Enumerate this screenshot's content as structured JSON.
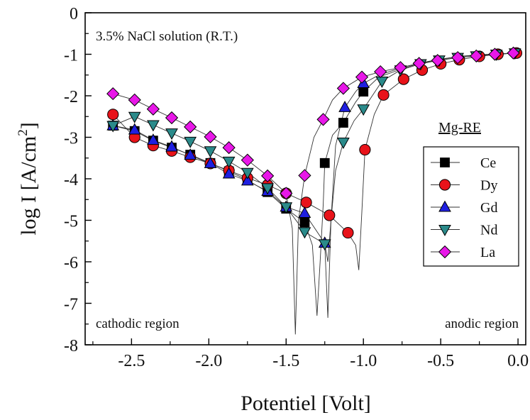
{
  "chart_data": {
    "type": "scatter",
    "xlabel": "Potentiel [Volt]",
    "ylabel": "log I [A/cm",
    "ylabel_sup": "2",
    "ylabel_end": "]",
    "xlim": [
      -2.8,
      0.05
    ],
    "ylim": [
      -8,
      0
    ],
    "x_ticks": [
      -2.5,
      -2.0,
      -1.5,
      -1.0,
      -0.5,
      0.0
    ],
    "x_tick_labels": [
      "-2.5",
      "-2.0",
      "-1.5",
      "-1.0",
      "-0.5",
      "0.0"
    ],
    "y_ticks": [
      0,
      -1,
      -2,
      -3,
      -4,
      -5,
      -6,
      -7,
      -8
    ],
    "y_tick_labels": [
      "0",
      "-1",
      "-2",
      "-3",
      "-4",
      "-5",
      "-6",
      "-7",
      "-8"
    ],
    "grid": false,
    "legend_position": "right",
    "annotations": {
      "solution": "3.5% NaCl solution (R.T.)",
      "cathodic": "cathodic region",
      "anodic": "anodic region",
      "legend_title": "Mg-RE"
    },
    "series": [
      {
        "name": "Ce",
        "marker": "square",
        "color": "#000000",
        "x": [
          -2.62,
          -2.48,
          -2.36,
          -2.24,
          -2.12,
          -1.99,
          -1.87,
          -1.75,
          -1.62,
          -1.5,
          -1.38,
          -1.25,
          -1.13,
          -1.0
        ],
        "y": [
          -2.72,
          -2.85,
          -3.08,
          -3.25,
          -3.42,
          -3.62,
          -3.82,
          -4.03,
          -4.32,
          -4.72,
          -5.05,
          -3.62,
          -2.65,
          -1.9
        ],
        "curve": {
          "x": [
            -2.62,
            -2.48,
            -2.36,
            -2.24,
            -2.12,
            -1.99,
            -1.87,
            -1.75,
            -1.62,
            -1.5,
            -1.38,
            -1.33,
            -1.3,
            -1.28,
            -1.26,
            -1.25,
            -1.2,
            -1.13,
            -1.05,
            -1.0,
            -0.9,
            -0.75,
            -0.62,
            -0.5,
            -0.38,
            -0.25,
            -0.13,
            -0.02
          ],
          "y": [
            -2.72,
            -2.85,
            -3.08,
            -3.25,
            -3.42,
            -3.62,
            -3.82,
            -4.03,
            -4.32,
            -4.72,
            -5.05,
            -5.6,
            -7.3,
            -6.0,
            -4.6,
            -3.62,
            -2.95,
            -2.65,
            -2.15,
            -1.9,
            -1.55,
            -1.35,
            -1.2,
            -1.12,
            -1.05,
            -1.02,
            -1.0,
            -0.97
          ]
        }
      },
      {
        "name": "Dy",
        "marker": "circle",
        "color": "#e8131a",
        "x": [
          -2.62,
          -2.48,
          -2.36,
          -2.24,
          -2.12,
          -1.99,
          -1.87,
          -1.75,
          -1.62,
          -1.5,
          -1.37,
          -1.22,
          -1.1,
          -0.99,
          -0.87,
          -0.74,
          -0.62,
          -0.5,
          -0.38,
          -0.25,
          -0.13,
          -0.01
        ],
        "y": [
          -2.45,
          -3.0,
          -3.2,
          -3.33,
          -3.48,
          -3.63,
          -3.8,
          -3.98,
          -4.15,
          -4.35,
          -4.57,
          -4.88,
          -5.3,
          -3.3,
          -1.98,
          -1.6,
          -1.38,
          -1.23,
          -1.13,
          -1.05,
          -1.0,
          -0.97
        ],
        "curve": {
          "x": [
            -2.62,
            -2.48,
            -2.36,
            -2.24,
            -2.12,
            -1.99,
            -1.87,
            -1.75,
            -1.62,
            -1.5,
            -1.37,
            -1.22,
            -1.1,
            -1.05,
            -1.03,
            -1.01,
            -0.99,
            -0.93,
            -0.87,
            -0.74,
            -0.62,
            -0.5,
            -0.38,
            -0.25,
            -0.13,
            -0.01
          ],
          "y": [
            -2.45,
            -3.0,
            -3.2,
            -3.33,
            -3.48,
            -3.63,
            -3.8,
            -3.98,
            -4.15,
            -4.35,
            -4.57,
            -4.88,
            -5.3,
            -5.6,
            -6.2,
            -4.8,
            -3.3,
            -2.45,
            -1.98,
            -1.6,
            -1.38,
            -1.23,
            -1.13,
            -1.05,
            -1.0,
            -0.97
          ]
        }
      },
      {
        "name": "Gd",
        "marker": "triangle-up",
        "color": "#1f1fe0",
        "x": [
          -2.62,
          -2.48,
          -2.36,
          -2.24,
          -2.12,
          -1.99,
          -1.87,
          -1.75,
          -1.62,
          -1.5,
          -1.38,
          -1.25,
          -1.12,
          -1.0
        ],
        "y": [
          -2.72,
          -2.82,
          -3.07,
          -3.23,
          -3.43,
          -3.63,
          -3.88,
          -4.05,
          -4.3,
          -4.68,
          -4.83,
          -5.55,
          -2.28,
          -1.7
        ],
        "curve": {
          "x": [
            -2.62,
            -2.48,
            -2.36,
            -2.24,
            -2.12,
            -1.99,
            -1.87,
            -1.75,
            -1.62,
            -1.5,
            -1.38,
            -1.25,
            -1.23,
            -1.21,
            -1.18,
            -1.12,
            -1.05,
            -1.0,
            -0.9,
            -0.75,
            -0.62,
            -0.5,
            -0.38,
            -0.25,
            -0.13,
            -0.02
          ],
          "y": [
            -2.72,
            -2.82,
            -3.07,
            -3.23,
            -3.43,
            -3.63,
            -3.88,
            -4.05,
            -4.3,
            -4.68,
            -4.83,
            -5.55,
            -7.35,
            -5.0,
            -3.2,
            -2.28,
            -1.9,
            -1.7,
            -1.5,
            -1.32,
            -1.2,
            -1.12,
            -1.05,
            -1.01,
            -0.99,
            -0.97
          ]
        }
      },
      {
        "name": "Nd",
        "marker": "triangle-down",
        "color": "#2a8a8a",
        "x": [
          -2.62,
          -2.48,
          -2.36,
          -2.24,
          -2.12,
          -1.99,
          -1.87,
          -1.75,
          -1.62,
          -1.5,
          -1.38,
          -1.25,
          -1.13,
          -1.0,
          -0.88,
          -0.76,
          -0.63,
          -0.51,
          -0.39,
          -0.27,
          -0.14,
          -0.02
        ],
        "y": [
          -2.72,
          -2.5,
          -2.7,
          -2.9,
          -3.1,
          -3.33,
          -3.58,
          -3.85,
          -4.22,
          -4.68,
          -5.28,
          -5.57,
          -3.12,
          -2.32,
          -1.65,
          -1.38,
          -1.23,
          -1.14,
          -1.08,
          -1.04,
          -1.0,
          -0.97
        ],
        "curve": {
          "x": [
            -2.62,
            -2.48,
            -2.36,
            -2.24,
            -2.12,
            -1.99,
            -1.87,
            -1.75,
            -1.62,
            -1.5,
            -1.38,
            -1.25,
            -1.23,
            -1.21,
            -1.18,
            -1.13,
            -1.06,
            -1.0,
            -0.88,
            -0.76,
            -0.63,
            -0.51,
            -0.39,
            -0.27,
            -0.14,
            -0.02
          ],
          "y": [
            -2.72,
            -2.5,
            -2.7,
            -2.9,
            -3.1,
            -3.33,
            -3.58,
            -3.85,
            -4.22,
            -4.68,
            -5.28,
            -5.57,
            -6.0,
            -5.0,
            -3.8,
            -3.12,
            -2.6,
            -2.32,
            -1.65,
            -1.38,
            -1.23,
            -1.14,
            -1.08,
            -1.04,
            -1.0,
            -0.97
          ]
        }
      },
      {
        "name": "La",
        "marker": "diamond",
        "color": "#e817e8",
        "x": [
          -2.62,
          -2.48,
          -2.36,
          -2.24,
          -2.12,
          -1.99,
          -1.87,
          -1.75,
          -1.62,
          -1.5,
          -1.38,
          -1.26,
          -1.13,
          -1.01,
          -0.89,
          -0.76,
          -0.64,
          -0.52,
          -0.39,
          -0.27,
          -0.15,
          -0.03
        ],
        "y": [
          -1.95,
          -2.1,
          -2.32,
          -2.53,
          -2.75,
          -2.99,
          -3.25,
          -3.55,
          -3.93,
          -4.35,
          -3.92,
          -2.57,
          -1.82,
          -1.55,
          -1.42,
          -1.32,
          -1.22,
          -1.15,
          -1.08,
          -1.04,
          -1.0,
          -0.97
        ],
        "curve": {
          "x": [
            -2.62,
            -2.48,
            -2.36,
            -2.24,
            -2.12,
            -1.99,
            -1.87,
            -1.75,
            -1.62,
            -1.5,
            -1.46,
            -1.44,
            -1.42,
            -1.38,
            -1.32,
            -1.26,
            -1.2,
            -1.13,
            -1.01,
            -0.89,
            -0.76,
            -0.64,
            -0.52,
            -0.39,
            -0.27,
            -0.15,
            -0.03
          ],
          "y": [
            -1.95,
            -2.1,
            -2.32,
            -2.53,
            -2.75,
            -2.99,
            -3.25,
            -3.55,
            -3.93,
            -4.35,
            -5.2,
            -7.75,
            -5.0,
            -3.92,
            -3.0,
            -2.57,
            -2.1,
            -1.82,
            -1.55,
            -1.42,
            -1.32,
            -1.22,
            -1.15,
            -1.08,
            -1.04,
            -1.0,
            -0.97
          ]
        }
      }
    ]
  }
}
